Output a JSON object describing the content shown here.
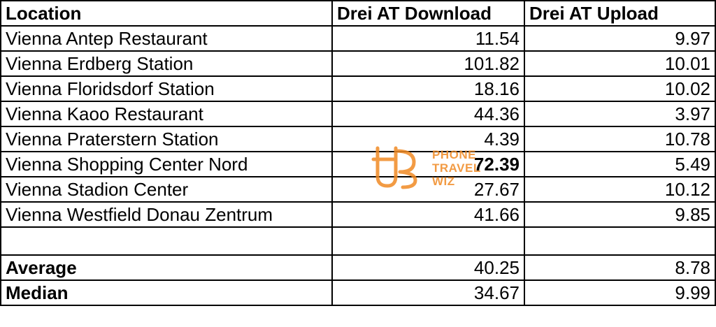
{
  "table": {
    "headers": [
      "Location",
      "Drei AT Download",
      "Drei AT Upload"
    ],
    "rows": [
      {
        "location": "Vienna Antep Restaurant",
        "download": "11.54",
        "upload": "9.97"
      },
      {
        "location": "Vienna Erdberg Station",
        "download": "101.82",
        "upload": "10.01"
      },
      {
        "location": "Vienna Floridsdorf Station",
        "download": "18.16",
        "upload": "10.02"
      },
      {
        "location": "Vienna Kaoo Restaurant",
        "download": "44.36",
        "upload": "3.97"
      },
      {
        "location": "Vienna Praterstern Station",
        "download": "4.39",
        "upload": "10.78"
      },
      {
        "location": "Vienna Shopping Center Nord",
        "download": "72.39",
        "upload": "5.49"
      },
      {
        "location": "Vienna Stadion Center",
        "download": "27.67",
        "upload": "10.12"
      },
      {
        "location": "Vienna Westfield Donau Zentrum",
        "download": "41.66",
        "upload": "9.85"
      }
    ],
    "summary": [
      {
        "label": "Average",
        "download": "40.25",
        "upload": "8.78"
      },
      {
        "label": "Median",
        "download": "34.67",
        "upload": "9.99"
      }
    ]
  },
  "watermark": {
    "line1": "PHONE",
    "line2": "TRAVEL",
    "line3": "WIZ",
    "color": "#f08a24"
  }
}
